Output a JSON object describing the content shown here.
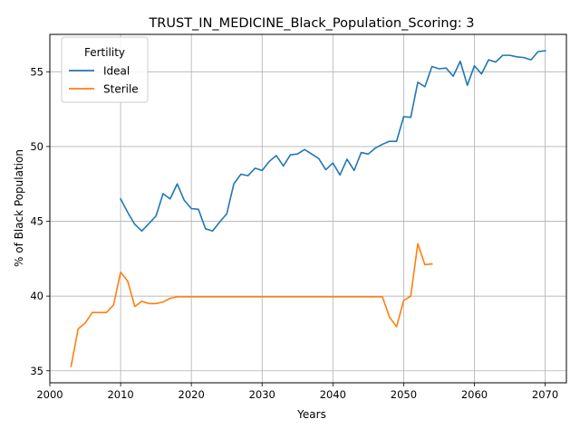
{
  "chart_data": {
    "type": "line",
    "title": "TRUST_IN_MEDICINE_Black_Population_Scoring: 3",
    "xlabel": "Years",
    "ylabel": "% of Black Population",
    "xlim": [
      2000,
      2073
    ],
    "ylim": [
      34.2,
      57.5
    ],
    "xticks": [
      2000,
      2010,
      2020,
      2030,
      2040,
      2050,
      2060,
      2070
    ],
    "yticks": [
      35,
      40,
      45,
      50,
      55
    ],
    "grid": true,
    "legend": {
      "title": "Fertility",
      "placement": "upper-left"
    },
    "series": [
      {
        "name": "Ideal",
        "color": "#1f77b4",
        "x": [
          2010,
          2011,
          2012,
          2013,
          2014,
          2015,
          2016,
          2017,
          2018,
          2019,
          2020,
          2021,
          2022,
          2023,
          2024,
          2025,
          2026,
          2027,
          2028,
          2029,
          2030,
          2031,
          2032,
          2033,
          2034,
          2035,
          2036,
          2037,
          2038,
          2039,
          2040,
          2041,
          2042,
          2043,
          2044,
          2045,
          2046,
          2047,
          2048,
          2049,
          2050,
          2051,
          2052,
          2053,
          2054,
          2055,
          2056,
          2057,
          2058,
          2059,
          2060,
          2061,
          2062,
          2063,
          2064,
          2065,
          2066,
          2067,
          2068,
          2069,
          2070
        ],
        "values": [
          46.5,
          45.6,
          44.8,
          44.35,
          44.85,
          45.35,
          46.85,
          46.5,
          47.5,
          46.4,
          45.85,
          45.8,
          44.5,
          44.35,
          44.95,
          45.5,
          47.5,
          48.15,
          48.05,
          48.55,
          48.4,
          49.0,
          49.4,
          48.7,
          49.45,
          49.5,
          49.8,
          49.5,
          49.2,
          48.45,
          48.9,
          48.1,
          49.15,
          48.4,
          49.6,
          49.5,
          49.9,
          50.15,
          50.35,
          50.35,
          52.0,
          51.95,
          54.3,
          54.0,
          55.35,
          55.2,
          55.25,
          54.7,
          55.7,
          54.1,
          55.4,
          54.85,
          55.8,
          55.65,
          56.1,
          56.1,
          56.0,
          55.95,
          55.8,
          56.35,
          56.4
        ]
      },
      {
        "name": "Sterile",
        "color": "#ff7f0e",
        "x": [
          2003,
          2004,
          2005,
          2006,
          2007,
          2008,
          2009,
          2010,
          2011,
          2012,
          2013,
          2014,
          2015,
          2016,
          2017,
          2018,
          2019,
          2020,
          2021,
          2022,
          2023,
          2024,
          2025,
          2026,
          2027,
          2028,
          2029,
          2030,
          2031,
          2032,
          2033,
          2034,
          2035,
          2036,
          2037,
          2038,
          2039,
          2040,
          2041,
          2042,
          2043,
          2044,
          2045,
          2046,
          2047,
          2048,
          2049,
          2050,
          2051,
          2052,
          2053,
          2054
        ],
        "values": [
          35.3,
          37.8,
          38.2,
          38.9,
          38.9,
          38.9,
          39.4,
          41.6,
          41.0,
          39.3,
          39.65,
          39.5,
          39.5,
          39.6,
          39.85,
          39.95,
          39.95,
          39.95,
          39.95,
          39.95,
          39.95,
          39.95,
          39.95,
          39.95,
          39.95,
          39.95,
          39.95,
          39.95,
          39.95,
          39.95,
          39.95,
          39.95,
          39.95,
          39.95,
          39.95,
          39.95,
          39.95,
          39.95,
          39.95,
          39.95,
          39.95,
          39.95,
          39.95,
          39.95,
          39.95,
          38.6,
          37.95,
          39.7,
          40.0,
          43.5,
          42.1,
          42.15
        ]
      }
    ]
  }
}
